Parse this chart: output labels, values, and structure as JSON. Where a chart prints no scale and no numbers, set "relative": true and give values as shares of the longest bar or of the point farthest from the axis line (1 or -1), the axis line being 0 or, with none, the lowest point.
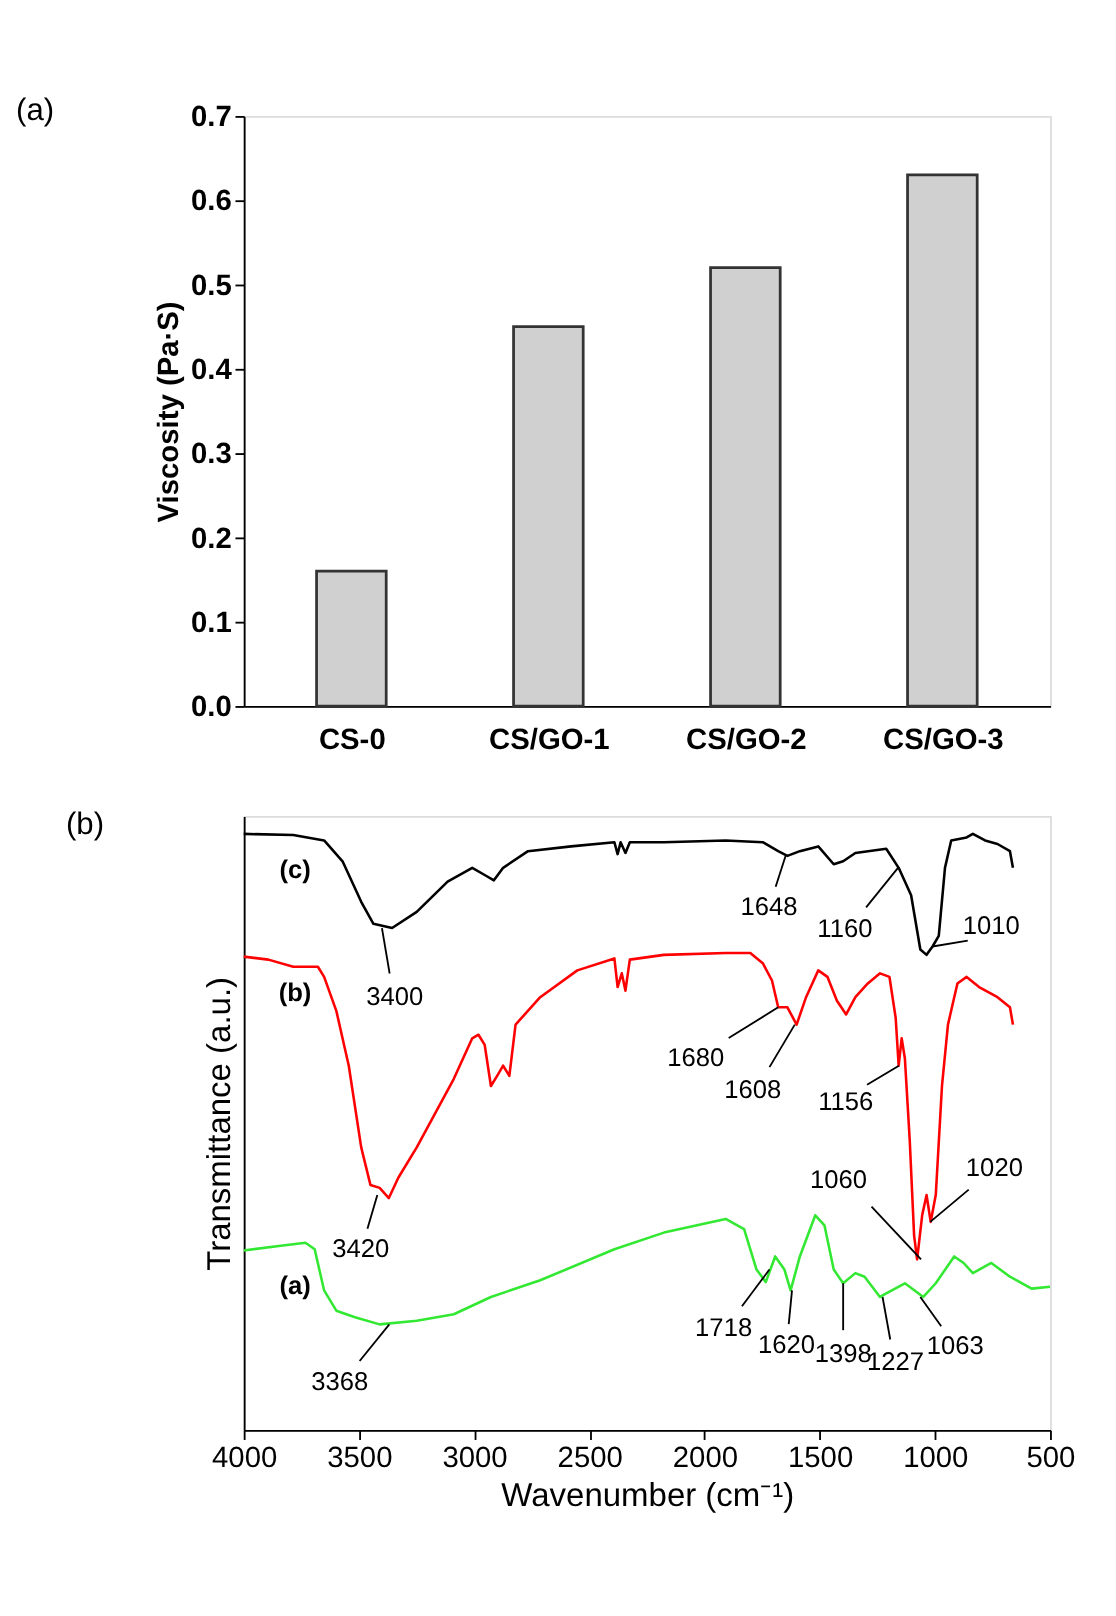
{
  "chart_data": [
    {
      "type": "bar",
      "title": "(a)",
      "ylabel": "Viscosity (Pa·S)",
      "categories": [
        "CS-0",
        "CS/GO-1",
        "CS/GO-2",
        "CS/GO-3"
      ],
      "values": [
        0.16,
        0.45,
        0.52,
        0.63
      ],
      "color": "#d0d0d0",
      "ylim": [
        0,
        0.7
      ],
      "yticks": [
        {
          "value": 0,
          "label": "0.0"
        },
        0.1,
        0.2,
        0.3,
        0.4,
        0.5,
        0.6,
        0.7
      ],
      "grid": false
    },
    {
      "type": "line",
      "title": "(b)",
      "xlabel": "Wavenumber (cm⁻¹)",
      "ylabel": "Transmittance (a.u.)",
      "relative": true,
      "xlim": [
        4000,
        500
      ],
      "xticks": [
        4000,
        3500,
        3000,
        2500,
        2000,
        1500,
        1000,
        500
      ],
      "tick_labels": "x",
      "grid": false,
      "legend": false,
      "line_style": "solid",
      "marker": "none",
      "series": [
        {
          "name": "(c)",
          "color": "#000000",
          "x": [
            4000,
            3785,
            3651,
            3571,
            3490,
            3437,
            3356,
            3249,
            3115,
            3008,
            2954,
            2914,
            2874,
            2766,
            2579,
            2391,
            2377,
            2364,
            2343,
            2324,
            2176,
            1908,
            1747,
            1680,
            1640,
            1586,
            1506,
            1439,
            1398,
            1345,
            1211,
            1157,
            1103,
            1063,
            1036,
            1010,
            983,
            956,
            929,
            862,
            835,
            782,
            728,
            674,
            661
          ],
          "values": [
            1.0,
            0.998,
            0.989,
            0.954,
            0.886,
            0.849,
            0.842,
            0.869,
            0.92,
            0.943,
            0.931,
            0.922,
            0.943,
            0.971,
            0.979,
            0.986,
            0.966,
            0.986,
            0.968,
            0.986,
            0.986,
            0.989,
            0.986,
            0.971,
            0.963,
            0.971,
            0.979,
            0.949,
            0.954,
            0.968,
            0.975,
            0.943,
            0.897,
            0.806,
            0.797,
            0.811,
            0.829,
            0.943,
            0.989,
            0.994,
            1.0,
            0.989,
            0.983,
            0.971,
            0.943
          ]
        },
        {
          "name": "(b)",
          "color": "#ff0000",
          "x": [
            4000,
            3893,
            3785,
            3678,
            3651,
            3598,
            3544,
            3490,
            3450,
            3410,
            3370,
            3329,
            3249,
            3088,
            3008,
            2981,
            2954,
            2927,
            2900,
            2874,
            2847,
            2820,
            2713,
            2552,
            2391,
            2377,
            2359,
            2343,
            2324,
            2176,
            1908,
            1801,
            1747,
            1707,
            1680,
            1640,
            1600,
            1559,
            1506,
            1466,
            1425,
            1385,
            1345,
            1291,
            1238,
            1197,
            1170,
            1157,
            1144,
            1130,
            1109,
            1090,
            1077,
            1055,
            1036,
            1018,
            996,
            969,
            943,
            902,
            862,
            808,
            728,
            674,
            661
          ],
          "values": [
            0.794,
            0.789,
            0.777,
            0.777,
            0.76,
            0.703,
            0.611,
            0.474,
            0.411,
            0.406,
            0.389,
            0.423,
            0.474,
            0.589,
            0.657,
            0.663,
            0.646,
            0.577,
            0.594,
            0.611,
            0.594,
            0.68,
            0.726,
            0.771,
            0.791,
            0.743,
            0.766,
            0.737,
            0.789,
            0.797,
            0.8,
            0.8,
            0.783,
            0.754,
            0.709,
            0.709,
            0.68,
            0.726,
            0.771,
            0.76,
            0.72,
            0.697,
            0.726,
            0.749,
            0.766,
            0.76,
            0.691,
            0.611,
            0.657,
            0.623,
            0.486,
            0.326,
            0.286,
            0.36,
            0.394,
            0.349,
            0.394,
            0.577,
            0.68,
            0.749,
            0.76,
            0.743,
            0.726,
            0.709,
            0.68
          ]
        },
        {
          "name": "(a)",
          "color": "#33e833",
          "x": [
            4000,
            3839,
            3732,
            3692,
            3651,
            3598,
            3517,
            3410,
            3249,
            3088,
            2927,
            2713,
            2391,
            2176,
            1908,
            1828,
            1774,
            1734,
            1693,
            1653,
            1626,
            1586,
            1519,
            1479,
            1439,
            1398,
            1345,
            1305,
            1238,
            1211,
            1130,
            1050,
            996,
            916,
            875,
            835,
            755,
            674,
            580,
            500
          ],
          "values": [
            0.301,
            0.309,
            0.314,
            0.303,
            0.234,
            0.2,
            0.189,
            0.177,
            0.183,
            0.194,
            0.223,
            0.251,
            0.303,
            0.331,
            0.354,
            0.337,
            0.269,
            0.248,
            0.291,
            0.269,
            0.234,
            0.291,
            0.36,
            0.343,
            0.269,
            0.246,
            0.263,
            0.257,
            0.223,
            0.229,
            0.246,
            0.223,
            0.246,
            0.291,
            0.28,
            0.263,
            0.28,
            0.257,
            0.237,
            0.24
          ]
        }
      ],
      "annotations": [
        {
          "text": "3400",
          "x": 3400,
          "y": 0.842
        },
        {
          "text": "1648",
          "x": 1648,
          "y": 0.963
        },
        {
          "text": "1160",
          "x": 1160,
          "y": 0.943
        },
        {
          "text": "1010",
          "x": 1010,
          "y": 0.811
        },
        {
          "text": "3420",
          "x": 3420,
          "y": 0.394
        },
        {
          "text": "1680",
          "x": 1680,
          "y": 0.709
        },
        {
          "text": "1608",
          "x": 1608,
          "y": 0.68
        },
        {
          "text": "1156",
          "x": 1156,
          "y": 0.611
        },
        {
          "text": "1060",
          "x": 1060,
          "y": 0.286
        },
        {
          "text": "1020",
          "x": 1020,
          "y": 0.349
        },
        {
          "text": "3368",
          "x": 3368,
          "y": 0.177
        },
        {
          "text": "1718",
          "x": 1718,
          "y": 0.269
        },
        {
          "text": "1620",
          "x": 1620,
          "y": 0.234
        },
        {
          "text": "1398",
          "x": 1398,
          "y": 0.246
        },
        {
          "text": "1227",
          "x": 1227,
          "y": 0.223
        },
        {
          "text": "1063",
          "x": 1063,
          "y": 0.223
        }
      ]
    }
  ]
}
